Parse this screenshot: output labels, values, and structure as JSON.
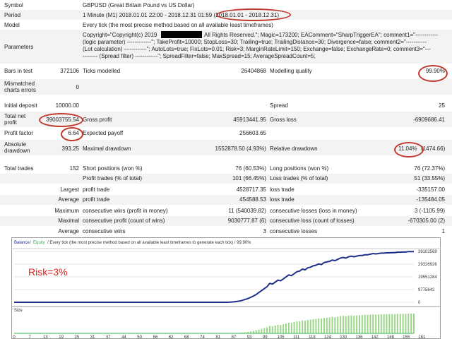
{
  "report": {
    "symbol": {
      "label": "Symbol",
      "value": "GBPUSD (Great Britain Pound vs US Dollar)"
    },
    "period": {
      "label": "Period",
      "value": "1 Minute (M1) 2018.01.01 22:00 - 2018.12.31 01:59 (2018.01.01 - 2018.12.31)"
    },
    "model": {
      "label": "Model",
      "value": "Every tick (the most precise method based on all available least timeframes)"
    },
    "parameters": {
      "label": "Parameters",
      "line1_start": "Copyright=\"Copyright(c) 2019",
      "line1_end": "All Rights Reserved.\"; Magic=173200; EAComment=\"SharpTriggerEA\"; comment1=\"------------",
      "line2": "(logic parameter) -------------\"; TakeProfit=10000; StopLoss=30; Trailing=true; TrailingDistance=30; Divergence=false; comment2=\"-----------",
      "line3": "(Lot calculation) ------------\"; AutoLots=true; FixLots=0.01; Risk=3; MarginRateLimit=150; Exchange=false; ExchangeRate=0; comment3=\"---",
      "line4": "-------- (Spread filter) ------------\"; SpreadFilter=false; MaxSpread=15; AverageSpreadCount=5;"
    },
    "bars": {
      "label": "Bars in test",
      "value": "372106"
    },
    "ticks": {
      "label": "Ticks modelled",
      "value": "26404868"
    },
    "modelling_quality": {
      "label": "Modelling quality",
      "value": "99.90%"
    },
    "mismatched": {
      "label1": "Mismatched",
      "label2": "charts errors",
      "value": "0"
    },
    "initial_deposit": {
      "label": "Initial deposit",
      "value": "10000.00"
    },
    "spread": {
      "label": "Spread",
      "value": "25"
    },
    "total_net_profit": {
      "label1": "Total net",
      "label2": "profit",
      "value": "39003755.54"
    },
    "gross_profit": {
      "label": "Gross profit",
      "value": "45913441.95"
    },
    "gross_loss": {
      "label": "Gross loss",
      "value": "-6909686.41"
    },
    "profit_factor": {
      "label": "Profit factor",
      "value": "6.64"
    },
    "expected_payoff": {
      "label": "Expected payoff",
      "value": "256603.65"
    },
    "absolute_drawdown": {
      "label1": "Absolute",
      "label2": "drawdown",
      "value": "393.25"
    },
    "maximal_drawdown": {
      "label": "Maximal drawdown",
      "value": "1552878.50 (4.93%)"
    },
    "relative_drawdown": {
      "label": "Relative drawdown",
      "value_pct": "11.04%",
      "value_amt": "(1474.66)"
    },
    "total_trades": {
      "label": "Total trades",
      "value": "152"
    },
    "short_positions": {
      "label": "Short positions (won %)",
      "value": "76 (60.53%)"
    },
    "long_positions": {
      "label": "Long positions (won %)",
      "value": "76 (72.37%)"
    },
    "profit_trades": {
      "label": "Profit trades (% of total)",
      "value": "101 (66.45%)"
    },
    "loss_trades": {
      "label": "Loss trades (% of total)",
      "value": "51 (33.55%)"
    },
    "largest": {
      "label": "Largest",
      "profit_label": "profit trade",
      "profit_value": "4528717.35",
      "loss_label": "loss trade",
      "loss_value": "-335157.00"
    },
    "average": {
      "label": "Average",
      "profit_label": "profit trade",
      "profit_value": "454588.53",
      "loss_label": "loss trade",
      "loss_value": "-135484.05"
    },
    "maximum": {
      "label": "Maximum",
      "wins_label": "consecutive wins (profit in money)",
      "wins_value": "11 (540039.82)",
      "losses_label": "consecutive losses (loss in money)",
      "losses_value": "3 (-1105.99)"
    },
    "maximal": {
      "label": "Maximal",
      "profit_label": "consecutive profit (count of wins)",
      "profit_value": "9030777.87 (6)",
      "loss_label": "consecutive loss (count of losses)",
      "loss_value": "-670305.00 (2)"
    },
    "average2": {
      "label": "Average",
      "wins_label": "consecutive wins",
      "wins_value": "3",
      "losses_label": "consecutive losses",
      "losses_value": "1"
    }
  },
  "chart_header": {
    "balance": "Balance",
    "slash": "/",
    "equity": "Equity",
    "rest": "/ Every tick (the most precise method based on all available least timeframes to generate each tick) / 99.90%"
  },
  "annotation": "Risk=3%",
  "size_label": "Size",
  "colors": {
    "balance": "#1f2f8a",
    "equity": "#2db34a",
    "annotation": "#e02020",
    "ellipse": "#c0392b",
    "size_bars": "#9bd68a"
  },
  "chart_data": {
    "type": "line",
    "series": [
      {
        "name": "Balance",
        "values": [
          10000,
          10000,
          10000,
          10000,
          10000,
          10000,
          10000,
          10000,
          10000,
          10000,
          10000,
          10000,
          10000,
          10000,
          10000,
          10000,
          10000,
          10000,
          10000,
          10000,
          10000,
          10000,
          10000,
          10000,
          10000,
          10000,
          10000,
          10000,
          10000,
          10000,
          10000,
          10000,
          10000,
          10000,
          10000,
          10000,
          10000,
          10000,
          10000,
          10000,
          10000,
          10000,
          10000,
          10000,
          10000,
          10000,
          10000,
          10000,
          10000,
          10000,
          10000,
          10000,
          10000,
          10000,
          10000,
          10000,
          10000,
          10000,
          10000,
          10000,
          10000,
          10000,
          10000,
          10000,
          10000,
          10000,
          10000,
          10000,
          10000,
          10000,
          10000,
          10000,
          10000,
          10000,
          10000,
          10000,
          10000,
          10000,
          10000,
          40000,
          200000,
          450000,
          700000,
          1000000,
          1500000,
          2200000,
          2900000,
          3800000,
          4800000,
          6000000,
          7500000,
          9000000,
          10500000,
          12000000,
          14500000,
          14000000,
          15500000,
          17000000,
          16500000,
          18000000,
          19500000,
          21000000,
          20500000,
          22000000,
          23500000,
          24000000,
          25500000,
          25000000,
          26500000,
          27000000,
          28000000,
          28500000,
          29500000,
          29000000,
          30500000,
          31000000,
          31500000,
          32500000,
          32000000,
          33000000,
          34000000,
          34500000,
          34000000,
          35000000,
          35500000,
          35000000,
          35500000,
          36000000,
          36000000,
          36500000,
          36500000,
          37000000,
          37500000,
          37200000,
          37500000,
          37800000,
          37800000,
          38000000,
          38000000,
          38200000,
          38200000,
          38500000,
          38500000,
          38600000,
          38600000,
          39013755,
          39013755,
          39013755
        ]
      }
    ],
    "yticks": [
      "39102569",
      "29326926",
      "19551284",
      "9775642",
      "0"
    ],
    "ytick_values": [
      39102569,
      29326926,
      19551284,
      9775642,
      0
    ],
    "xticks": [
      "0",
      "7",
      "13",
      "19",
      "25",
      "31",
      "37",
      "44",
      "50",
      "56",
      "62",
      "68",
      "74",
      "81",
      "87",
      "93",
      "99",
      "105",
      "111",
      "118",
      "124",
      "130",
      "136",
      "142",
      "148",
      "155",
      "161"
    ],
    "ylim": [
      0,
      39102569
    ],
    "xlim": [
      0,
      155
    ]
  }
}
